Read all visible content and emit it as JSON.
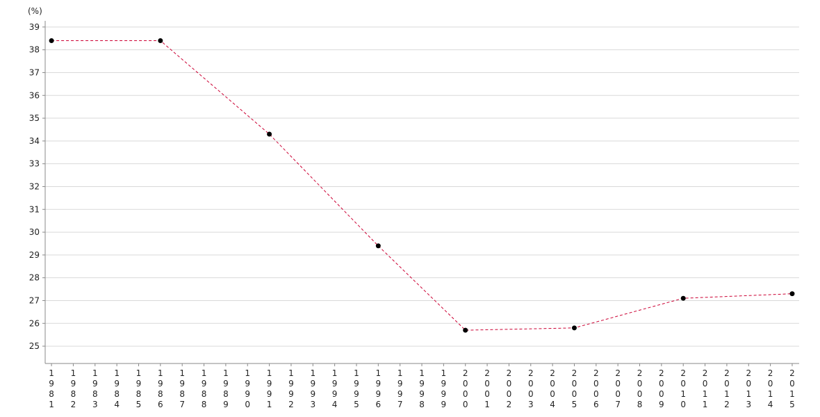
{
  "chart_data": {
    "type": "line",
    "y_label": "(%)",
    "x": [
      1981,
      1986,
      1991,
      1996,
      2000,
      2005,
      2010,
      2015
    ],
    "series": [
      {
        "color": "#cc0033",
        "values": [
          38.4,
          38.4,
          34.3,
          29.4,
          25.7,
          25.8,
          27.1,
          27.3
        ]
      }
    ],
    "xlim": [
      1980.71,
      2015.32
    ],
    "xticks": [
      1981,
      1982,
      1983,
      1984,
      1985,
      1986,
      1987,
      1988,
      1989,
      1990,
      1991,
      1992,
      1993,
      1994,
      1995,
      1996,
      1997,
      1998,
      1999,
      2000,
      2001,
      2002,
      2003,
      2004,
      2005,
      2006,
      2007,
      2008,
      2009,
      2010,
      2011,
      2012,
      2013,
      2014,
      2015
    ],
    "ylim": [
      24.24,
      39.27
    ],
    "yticks": [
      25,
      26,
      27,
      28,
      29,
      30,
      31,
      32,
      33,
      34,
      35,
      36,
      37,
      38,
      39
    ],
    "grid": true
  }
}
